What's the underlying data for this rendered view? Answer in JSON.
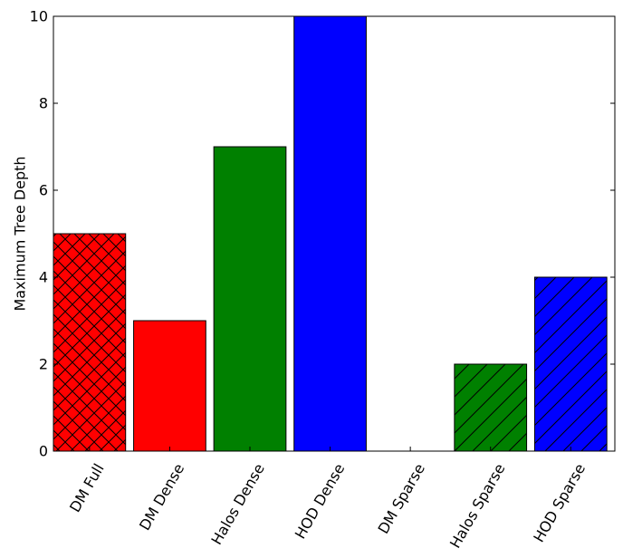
{
  "chart_data": {
    "type": "bar",
    "categories": [
      "DM Full",
      "DM Dense",
      "Halos Dense",
      "HOD Dense",
      "DM Sparse",
      "Halos Sparse",
      "HOD Sparse"
    ],
    "values": [
      5,
      3,
      7,
      10,
      0,
      2,
      4
    ],
    "colors": [
      "#ff0000",
      "#ff0000",
      "#008000",
      "#0000ff",
      "#0000ff",
      "#008000",
      "#0000ff"
    ],
    "hatch": [
      "cross",
      "none",
      "none",
      "none",
      "diagonal",
      "diagonal",
      "diagonal"
    ],
    "ylabel": "Maximum Tree Depth",
    "xlabel": "",
    "ylim": [
      0,
      10
    ],
    "yticks": [
      0,
      2,
      4,
      6,
      8,
      10
    ],
    "grid": false
  }
}
